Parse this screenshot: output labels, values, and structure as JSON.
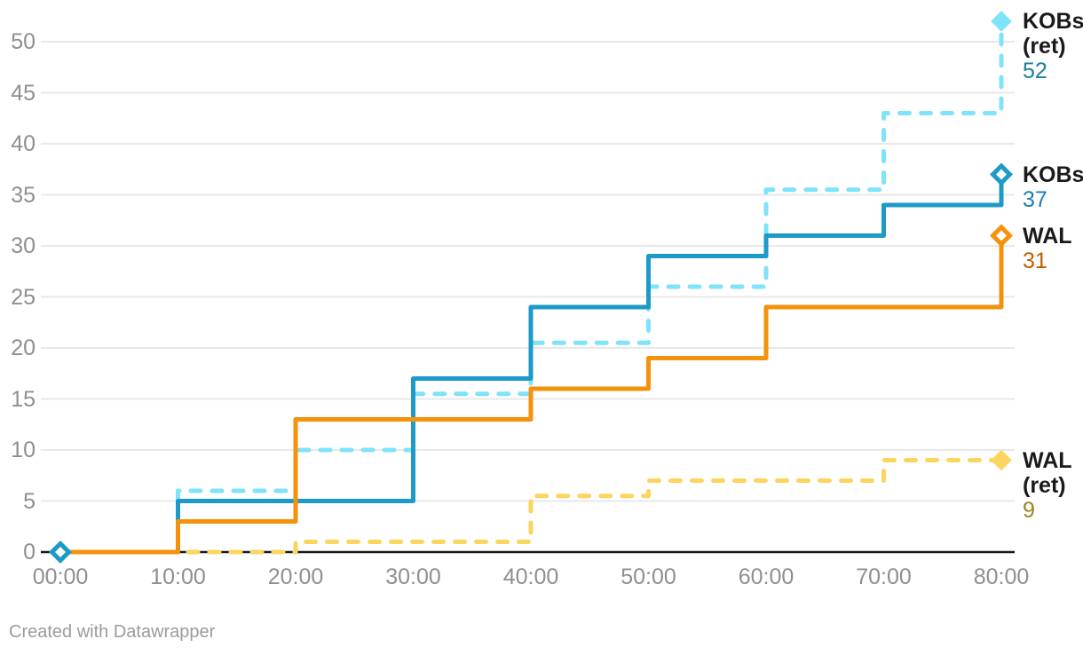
{
  "chart_data": {
    "type": "line",
    "line_shape": "step-after",
    "title": "",
    "xlabel": "",
    "ylabel": "",
    "x_tick_labels": [
      "00:00",
      "10:00",
      "20:00",
      "30:00",
      "40:00",
      "50:00",
      "60:00",
      "70:00",
      "80:00"
    ],
    "x_values_minutes": [
      0,
      10,
      20,
      30,
      40,
      50,
      60,
      70,
      80
    ],
    "y_ticks": [
      0,
      5,
      10,
      15,
      20,
      25,
      30,
      35,
      40,
      45,
      50
    ],
    "ylim": [
      0,
      52
    ],
    "xlim_minutes": [
      0,
      80
    ],
    "grid": "horizontal-only",
    "legend_position": "labels-at-line-ends-right",
    "series": [
      {
        "name": "WAL (ret)",
        "label_lines": [
          "WAL",
          "(ret)"
        ],
        "end_value_label": "9",
        "line_style": "dashed",
        "line_color": "#fcd55f",
        "value_label_color": "#a0831b",
        "end_marker": "filled-diamond",
        "values": [
          0,
          0,
          1,
          1,
          5.5,
          7,
          7,
          9,
          9
        ]
      },
      {
        "name": "KOBs (ret)",
        "label_lines": [
          "KOBs",
          "(ret)"
        ],
        "end_value_label": "52",
        "line_style": "dashed",
        "line_color": "#7fe3f9",
        "value_label_color": "#17809c",
        "end_marker": "filled-diamond",
        "values": [
          0,
          6,
          10,
          15.5,
          20.5,
          26,
          35.5,
          43,
          52
        ]
      },
      {
        "name": "KOBs",
        "label_lines": [
          "KOBs"
        ],
        "end_value_label": "37",
        "line_style": "solid",
        "line_color": "#1d9ac8",
        "value_label_color": "#1e7fae",
        "end_marker": "open-diamond",
        "start_marker": "open-diamond",
        "values": [
          0,
          5,
          5,
          17,
          24,
          29,
          31,
          34,
          37
        ]
      },
      {
        "name": "WAL",
        "label_lines": [
          "WAL"
        ],
        "end_value_label": "31",
        "line_style": "solid",
        "line_color": "#f5920b",
        "value_label_color": "#c25e00",
        "end_marker": "open-diamond",
        "values": [
          0,
          3,
          13,
          13,
          16,
          19,
          24,
          24,
          31
        ]
      }
    ]
  },
  "footer": {
    "credit": "Created with Datawrapper"
  },
  "colors": {
    "background": "#ffffff",
    "gridline": "#e8e8e8",
    "axis_line": "#18191c",
    "axis_text": "#8f8f8f",
    "label_text": "#1a1a1a"
  }
}
